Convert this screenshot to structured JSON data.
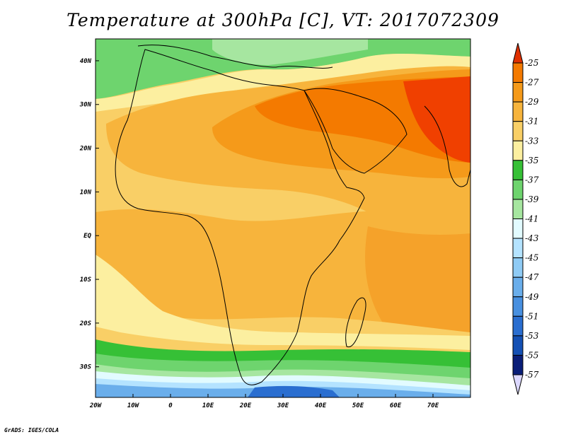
{
  "title": "Temperature at 300hPa [C], VT: 2017072309",
  "credit": "GrADS: IGES/COLA",
  "map": {
    "lon_range": [
      -20,
      80
    ],
    "lat_range": [
      -37,
      45
    ],
    "lon_ticks": [
      "20W",
      "10W",
      "0",
      "10E",
      "20E",
      "30E",
      "40E",
      "50E",
      "60E",
      "70E"
    ],
    "lat_ticks": [
      "40N",
      "30N",
      "20N",
      "10N",
      "EQ",
      "10S",
      "20S",
      "30S"
    ],
    "lon_tick_values": [
      -20,
      -10,
      0,
      10,
      20,
      30,
      40,
      50,
      60,
      70
    ],
    "lat_tick_values": [
      40,
      30,
      20,
      10,
      0,
      -10,
      -20,
      -30
    ]
  },
  "colorbar": {
    "levels": [
      "-25",
      "-27",
      "-29",
      "-31",
      "-33",
      "-35",
      "-37",
      "-39",
      "-41",
      "-43",
      "-45",
      "-47",
      "-49",
      "-51",
      "-53",
      "-55",
      "-57"
    ],
    "colors": [
      "#f04000",
      "#f47a00",
      "#f59a1a",
      "#f7b43c",
      "#f9cf66",
      "#fcefa0",
      "#36c036",
      "#6ed46e",
      "#a6e6a0",
      "#e2fbff",
      "#b4e3ff",
      "#8fcbf5",
      "#6aaeeb",
      "#4890e0",
      "#2a6ed0",
      "#1450b4",
      "#0a1e78"
    ],
    "top_arrow_color": "#e03000",
    "bottom_arrow_color": "#dcd8ff"
  }
}
